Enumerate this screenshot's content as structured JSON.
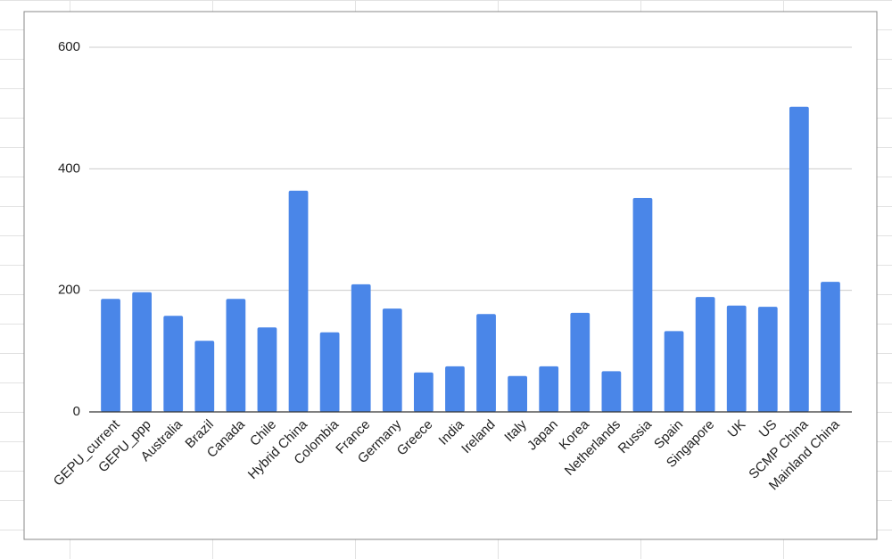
{
  "chart_data": {
    "type": "bar",
    "categories": [
      "GEPU_current",
      "GEPU_ppp",
      "Australia",
      "Brazil",
      "Canada",
      "Chile",
      "Hybrid China",
      "Colombia",
      "France",
      "Germany",
      "Greece",
      "India",
      "Ireland",
      "Italy",
      "Japan",
      "Korea",
      "Netherlands",
      "Russia",
      "Spain",
      "Singapore",
      "UK",
      "US",
      "SCMP China",
      "Mainland China"
    ],
    "values": [
      186,
      197,
      158,
      117,
      186,
      139,
      364,
      131,
      210,
      170,
      65,
      75,
      161,
      59,
      75,
      163,
      67,
      352,
      133,
      189,
      175,
      173,
      502,
      214
    ],
    "color": "#4a86e8",
    "ylim": [
      0,
      600
    ],
    "yticks": [
      0,
      200,
      400,
      600
    ],
    "grid": true
  }
}
